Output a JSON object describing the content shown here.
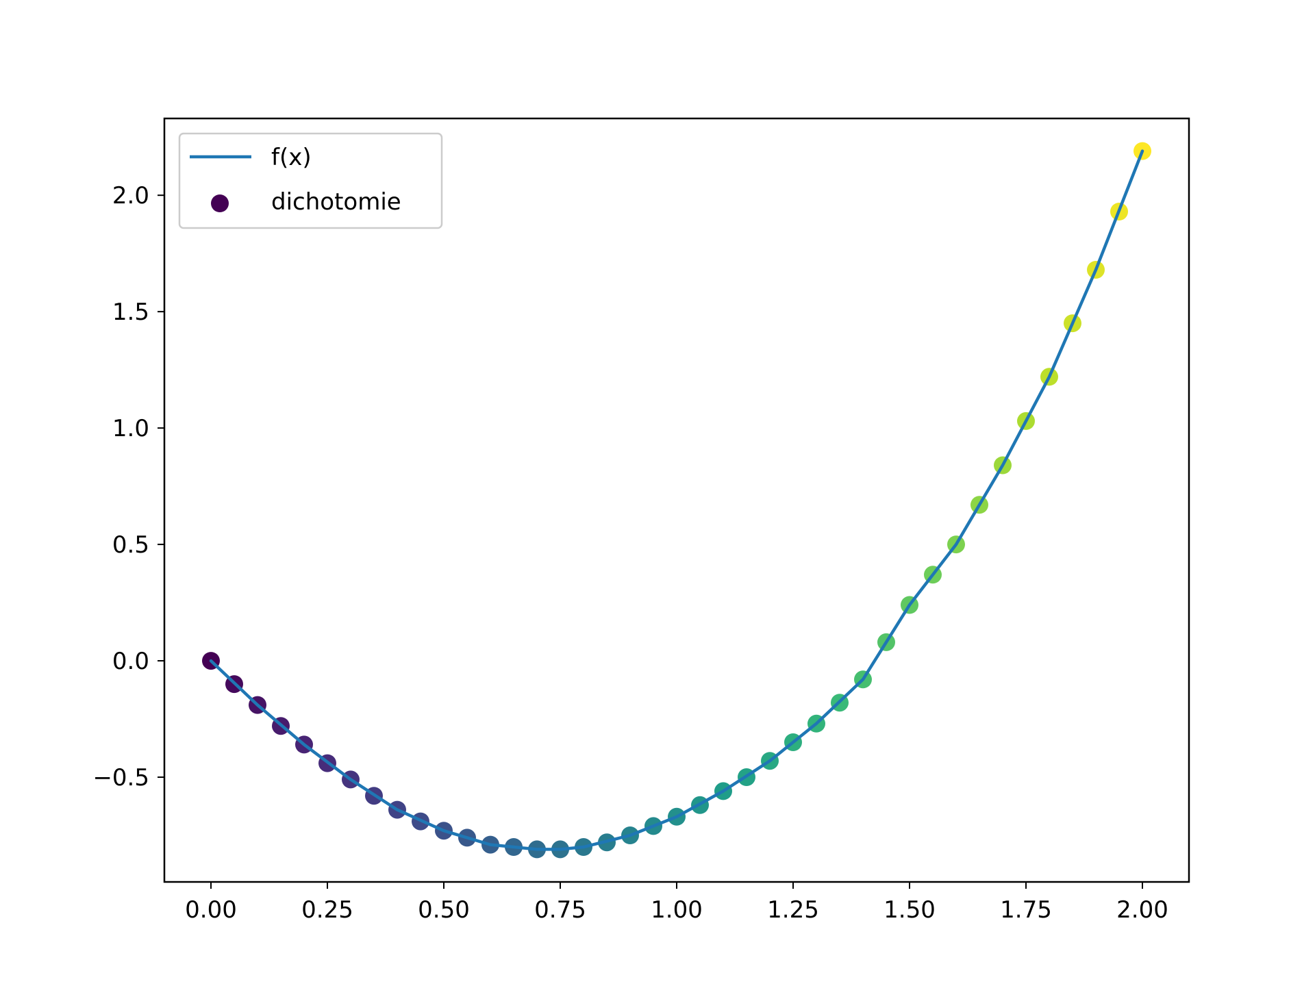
{
  "chart_data": {
    "type": "scatter",
    "title": "",
    "xlabel": "",
    "ylabel": "",
    "xlim": [
      -0.1,
      2.1
    ],
    "ylim": [
      -0.95,
      2.33
    ],
    "x_ticks": [
      0.0,
      0.25,
      0.5,
      0.75,
      1.0,
      1.25,
      1.5,
      1.75,
      2.0
    ],
    "x_tick_labels": [
      "0.00",
      "0.25",
      "0.50",
      "0.75",
      "1.00",
      "1.25",
      "1.50",
      "1.75",
      "2.00"
    ],
    "y_ticks": [
      -0.5,
      0.0,
      0.5,
      1.0,
      1.5,
      2.0
    ],
    "y_tick_labels": [
      "−0.5",
      "0.0",
      "0.5",
      "1.0",
      "1.5",
      "2.0"
    ],
    "grid": false,
    "legend_position": "top-left",
    "colormap": "viridis",
    "series": [
      {
        "name": "f(x)",
        "kind": "line",
        "color": "#1f77b4",
        "x": [
          0.0,
          0.1,
          0.2,
          0.3,
          0.4,
          0.5,
          0.6,
          0.7,
          0.75,
          0.8,
          0.9,
          1.0,
          1.1,
          1.2,
          1.3,
          1.4,
          1.5,
          1.6,
          1.7,
          1.8,
          1.9,
          2.0
        ],
        "y": [
          0.0,
          -0.19,
          -0.36,
          -0.51,
          -0.64,
          -0.73,
          -0.79,
          -0.81,
          -0.81,
          -0.8,
          -0.75,
          -0.67,
          -0.56,
          -0.43,
          -0.27,
          -0.08,
          0.24,
          0.5,
          0.84,
          1.22,
          1.68,
          2.19
        ]
      },
      {
        "name": "dichotomie",
        "kind": "scatter",
        "color": "#440154",
        "x": [
          0.0,
          0.05,
          0.1,
          0.15,
          0.2,
          0.25,
          0.3,
          0.35,
          0.4,
          0.45,
          0.5,
          0.55,
          0.6,
          0.65,
          0.7,
          0.75,
          0.8,
          0.85,
          0.9,
          0.95,
          1.0,
          1.05,
          1.1,
          1.15,
          1.2,
          1.25,
          1.3,
          1.35,
          1.4,
          1.45,
          1.5,
          1.55,
          1.6,
          1.65,
          1.7,
          1.75,
          1.8,
          1.85,
          1.9,
          1.95,
          2.0
        ],
        "y": [
          0.0,
          -0.1,
          -0.19,
          -0.28,
          -0.36,
          -0.44,
          -0.51,
          -0.58,
          -0.64,
          -0.69,
          -0.73,
          -0.76,
          -0.79,
          -0.8,
          -0.81,
          -0.81,
          -0.8,
          -0.78,
          -0.75,
          -0.71,
          -0.67,
          -0.62,
          -0.56,
          -0.5,
          -0.43,
          -0.35,
          -0.27,
          -0.18,
          -0.08,
          0.08,
          0.24,
          0.37,
          0.5,
          0.67,
          0.84,
          1.03,
          1.22,
          1.45,
          1.68,
          1.93,
          2.19
        ]
      }
    ]
  }
}
